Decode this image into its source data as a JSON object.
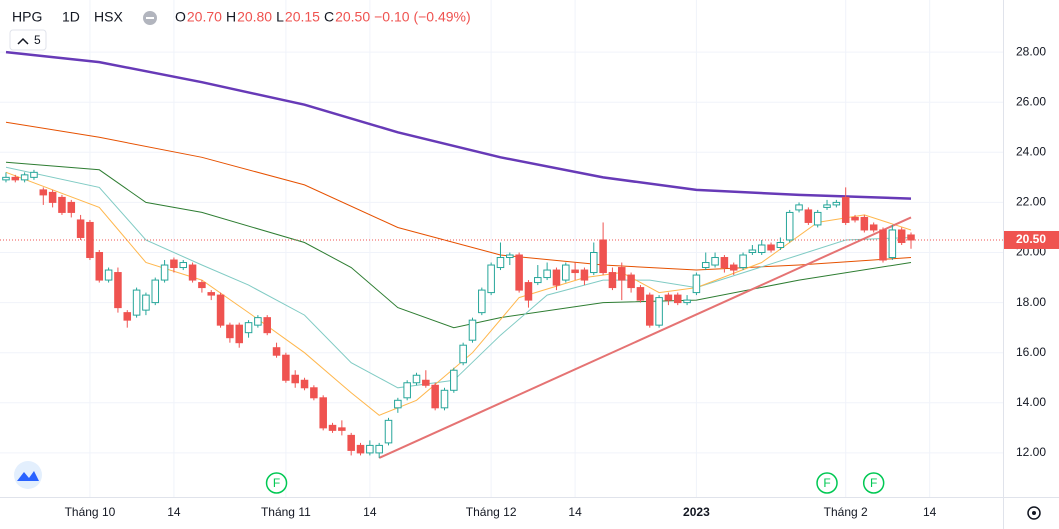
{
  "header": {
    "symbol": "HPG",
    "interval": "1D",
    "exchange": "HSX",
    "ohlc": [
      {
        "key": "O",
        "value": "20.70"
      },
      {
        "key": "H",
        "value": "20.80"
      },
      {
        "key": "L",
        "value": "20.15"
      },
      {
        "key": "C",
        "value": "20.50"
      }
    ],
    "change": "−0.10 (−0.49%)",
    "indicator_count": "5"
  },
  "chart_data": {
    "type": "candlestick",
    "up_color": "#26a69a",
    "down_color": "#ef5350",
    "grid": true,
    "open": [
      22.9,
      23.0,
      22.9,
      23.0,
      22.5,
      22.4,
      22.2,
      22.0,
      21.3,
      21.2,
      20.0,
      18.9,
      19.2,
      17.6,
      17.5,
      17.7,
      18.0,
      18.9,
      19.7,
      19.4,
      19.5,
      18.8,
      18.4,
      18.3,
      17.1,
      17.1,
      16.8,
      17.1,
      17.4,
      16.2,
      15.9,
      15.1,
      14.9,
      14.6,
      14.2,
      13.1,
      13.0,
      12.7,
      12.3,
      12.0,
      12.0,
      12.4,
      13.8,
      14.2,
      14.8,
      14.9,
      14.7,
      13.8,
      14.5,
      15.6,
      16.5,
      17.6,
      18.4,
      19.4,
      19.8,
      19.9,
      18.8,
      18.8,
      19.0,
      19.3,
      18.9,
      19.3,
      19.3,
      19.2,
      20.5,
      19.2,
      19.4,
      19.1,
      18.6,
      18.3,
      17.1,
      18.3,
      18.3,
      18.0,
      18.4,
      19.4,
      19.5,
      19.8,
      19.5,
      19.4,
      20.0,
      20.0,
      20.3,
      20.2,
      20.5,
      21.7,
      21.7,
      21.1,
      21.8,
      21.9,
      22.2,
      21.4,
      21.4,
      21.1,
      20.9,
      19.8,
      20.9,
      20.7
    ],
    "high": [
      23.2,
      23.1,
      23.2,
      23.3,
      22.6,
      22.5,
      22.3,
      22.1,
      21.5,
      21.3,
      20.1,
      19.4,
      19.4,
      17.7,
      18.6,
      18.4,
      19.0,
      19.7,
      19.8,
      19.7,
      19.6,
      18.9,
      18.5,
      18.4,
      17.2,
      17.2,
      17.3,
      17.5,
      17.5,
      16.4,
      16.0,
      15.3,
      15.0,
      14.7,
      14.3,
      13.2,
      13.3,
      12.8,
      12.4,
      12.5,
      12.4,
      13.4,
      14.2,
      14.9,
      15.2,
      15.3,
      14.8,
      14.6,
      15.4,
      16.4,
      17.4,
      18.6,
      19.6,
      20.4,
      20.0,
      20.0,
      18.9,
      19.5,
      19.6,
      19.4,
      19.6,
      19.6,
      19.4,
      20.4,
      21.2,
      19.4,
      19.6,
      19.2,
      18.7,
      18.4,
      18.3,
      18.4,
      18.4,
      18.3,
      19.2,
      20.0,
      20.0,
      19.9,
      19.6,
      20.0,
      20.3,
      20.5,
      20.4,
      20.6,
      21.7,
      22.0,
      21.8,
      21.7,
      22.1,
      22.1,
      22.6,
      21.5,
      21.5,
      21.2,
      21.0,
      21.1,
      21.0,
      20.8
    ],
    "low": [
      22.8,
      22.8,
      22.8,
      22.9,
      21.9,
      21.8,
      21.5,
      21.4,
      20.5,
      19.7,
      18.8,
      18.8,
      17.6,
      17.0,
      17.4,
      17.5,
      17.9,
      18.8,
      19.2,
      19.3,
      18.8,
      18.4,
      18.1,
      17.0,
      16.4,
      16.2,
      16.6,
      17.0,
      16.7,
      15.8,
      14.8,
      14.6,
      14.5,
      14.1,
      12.9,
      12.8,
      12.7,
      11.9,
      11.9,
      11.9,
      11.8,
      12.3,
      13.6,
      14.1,
      14.7,
      14.6,
      13.7,
      13.7,
      14.4,
      15.5,
      16.4,
      17.5,
      18.3,
      19.3,
      19.5,
      18.4,
      17.8,
      18.7,
      18.9,
      18.5,
      18.8,
      18.9,
      18.7,
      19.1,
      19.1,
      18.5,
      18.1,
      18.4,
      18.0,
      17.0,
      17.0,
      17.9,
      17.9,
      17.9,
      18.3,
      19.3,
      19.4,
      19.2,
      19.1,
      19.3,
      19.9,
      19.9,
      20.0,
      20.1,
      20.4,
      21.6,
      21.1,
      21.0,
      21.7,
      21.8,
      21.1,
      21.2,
      20.8,
      20.8,
      19.6,
      19.7,
      20.3,
      20.15
    ],
    "close": [
      23.0,
      22.9,
      23.1,
      23.2,
      22.3,
      22.0,
      21.6,
      21.6,
      20.6,
      19.8,
      18.9,
      19.3,
      17.8,
      17.3,
      18.5,
      18.3,
      18.9,
      19.5,
      19.4,
      19.6,
      18.9,
      18.6,
      18.3,
      17.1,
      16.6,
      16.4,
      17.2,
      17.4,
      16.8,
      15.9,
      14.9,
      14.8,
      14.6,
      14.2,
      13.0,
      12.9,
      12.9,
      12.1,
      12.0,
      12.3,
      12.3,
      13.3,
      14.1,
      14.8,
      15.1,
      14.7,
      13.8,
      14.5,
      15.3,
      16.3,
      17.3,
      18.5,
      19.5,
      19.8,
      19.9,
      18.5,
      18.1,
      19.0,
      19.3,
      18.7,
      19.5,
      19.2,
      18.9,
      20.0,
      19.2,
      18.6,
      18.9,
      18.6,
      18.1,
      17.1,
      18.2,
      18.1,
      18.0,
      18.1,
      19.1,
      19.6,
      19.8,
      19.4,
      19.3,
      19.9,
      20.1,
      20.3,
      20.1,
      20.4,
      21.6,
      21.9,
      21.2,
      21.6,
      21.9,
      22.0,
      21.2,
      21.3,
      20.9,
      20.9,
      19.7,
      20.9,
      20.4,
      20.5
    ],
    "xlim": [
      -0.64,
      106.86
    ],
    "ylim": [
      10.24,
      30.08
    ],
    "xticks": [
      {
        "value": 9,
        "label": "Tháng 10"
      },
      {
        "value": 18,
        "label": "14"
      },
      {
        "value": 30,
        "label": "Tháng 11"
      },
      {
        "value": 39,
        "label": "14"
      },
      {
        "value": 52,
        "label": "Tháng 12"
      },
      {
        "value": 61,
        "label": "14"
      },
      {
        "value": 74,
        "label": "2023"
      },
      {
        "value": 90,
        "label": "Tháng 2"
      },
      {
        "value": 99,
        "label": "14"
      }
    ],
    "yticks": [
      {
        "value": 12,
        "label": "12.00"
      },
      {
        "value": 14,
        "label": "14.00"
      },
      {
        "value": 16,
        "label": "16.00"
      },
      {
        "value": 18,
        "label": "18.00"
      },
      {
        "value": 20,
        "label": "20.00"
      },
      {
        "value": 22,
        "label": "22.00"
      },
      {
        "value": 24,
        "label": "24.00"
      },
      {
        "value": 26,
        "label": "26.00"
      },
      {
        "value": 28,
        "label": "28.00"
      }
    ],
    "lines": [
      {
        "color": "#673ab7",
        "width": 2.5,
        "x": [
          0,
          10,
          21,
          32,
          42,
          53,
          64,
          74,
          85,
          97
        ],
        "values": [
          28.0,
          27.6,
          26.8,
          25.9,
          24.8,
          23.8,
          23.0,
          22.5,
          22.3,
          22.15
        ]
      },
      {
        "color": "#e65100",
        "width": 1,
        "x": [
          0,
          10,
          21,
          32,
          42,
          53,
          64,
          74,
          85,
          97
        ],
        "values": [
          25.2,
          24.6,
          23.8,
          22.7,
          21.0,
          19.9,
          19.5,
          19.3,
          19.5,
          19.8
        ]
      },
      {
        "color": "#2e7d32",
        "width": 1,
        "x": [
          0,
          10,
          15,
          21,
          32,
          37,
          42,
          48,
          53,
          64,
          74,
          85,
          97
        ],
        "values": [
          23.6,
          23.3,
          22.0,
          21.6,
          20.4,
          19.4,
          17.8,
          17.0,
          17.4,
          18.0,
          18.1,
          18.9,
          19.6
        ]
      },
      {
        "color": "#80cbc4",
        "width": 1,
        "x": [
          0,
          10,
          15,
          21,
          26,
          32,
          37,
          42,
          48,
          53,
          58,
          64,
          69,
          74,
          85,
          90,
          97
        ],
        "values": [
          23.4,
          22.6,
          20.5,
          19.5,
          18.7,
          17.5,
          15.6,
          14.6,
          14.9,
          16.7,
          18.3,
          18.9,
          18.9,
          18.6,
          19.9,
          20.5,
          20.6
        ]
      },
      {
        "color": "#ffb74d",
        "width": 1,
        "x": [
          0,
          10,
          15,
          21,
          26,
          32,
          37,
          40,
          44,
          50,
          55,
          62,
          66,
          70,
          74,
          81,
          87,
          92,
          97
        ],
        "values": [
          23.2,
          21.8,
          19.6,
          18.9,
          17.6,
          16.0,
          14.4,
          13.5,
          14.1,
          16.0,
          18.2,
          19.0,
          19.2,
          18.4,
          18.6,
          19.6,
          21.2,
          21.5,
          20.9
        ]
      }
    ],
    "trendline": {
      "color": "#e57373",
      "x": [
        40,
        97
      ],
      "values": [
        11.8,
        21.4
      ]
    },
    "markers": [
      {
        "x": 29,
        "label": "F"
      },
      {
        "x": 88,
        "label": "F"
      },
      {
        "x": 93,
        "label": "F"
      }
    ],
    "last_price": {
      "value": 20.5,
      "label": "20.50",
      "color": "#ef5350"
    }
  }
}
